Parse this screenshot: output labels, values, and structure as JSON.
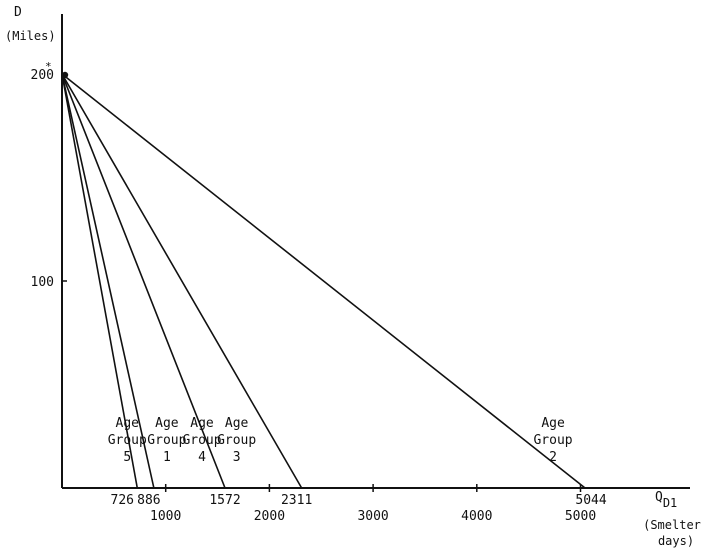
{
  "chart_data": {
    "type": "line",
    "title": "",
    "ylabel": "D",
    "ylabel_unit": "(Miles)",
    "xlabel": "Q",
    "xlabel_subscript": "D1",
    "xlabel_unit_line1": "(Smelter",
    "xlabel_unit_line2": "days)",
    "xlim": [
      0,
      6100
    ],
    "ylim": [
      0,
      212
    ],
    "grid": false,
    "y_ticks": [
      {
        "value": 100,
        "label": "100"
      },
      {
        "value": 200,
        "label": "200",
        "note": "*"
      }
    ],
    "x_ticks": [
      {
        "value": 1000,
        "label": "1000"
      },
      {
        "value": 2000,
        "label": "2000"
      },
      {
        "value": 3000,
        "label": "3000"
      },
      {
        "value": 4000,
        "label": "4000"
      },
      {
        "value": 5000,
        "label": "5000"
      }
    ],
    "series": [
      {
        "name": "Age Group 5",
        "label_line1": "Age",
        "label_line2": "Group",
        "label_line3": "5",
        "intercept_label": "726",
        "x": [
          0,
          726
        ],
        "y": [
          200,
          0
        ]
      },
      {
        "name": "Age Group 1",
        "label_line1": "Age",
        "label_line2": "Group",
        "label_line3": "1",
        "intercept_label": "886",
        "x": [
          0,
          886
        ],
        "y": [
          200,
          0
        ]
      },
      {
        "name": "Age Group 4",
        "label_line1": "Age",
        "label_line2": "Group",
        "label_line3": "4",
        "intercept_label": "1572",
        "x": [
          0,
          1572
        ],
        "y": [
          200,
          0
        ]
      },
      {
        "name": "Age Group 3",
        "label_line1": "Age",
        "label_line2": "Group",
        "label_line3": "3",
        "intercept_label": "2311",
        "x": [
          0,
          2311
        ],
        "y": [
          200,
          0
        ]
      },
      {
        "name": "Age Group 2",
        "label_line1": "Age",
        "label_line2": "Group",
        "label_line3": "2",
        "intercept_label": "5044",
        "x": [
          0,
          5044
        ],
        "y": [
          200,
          0
        ]
      }
    ]
  }
}
